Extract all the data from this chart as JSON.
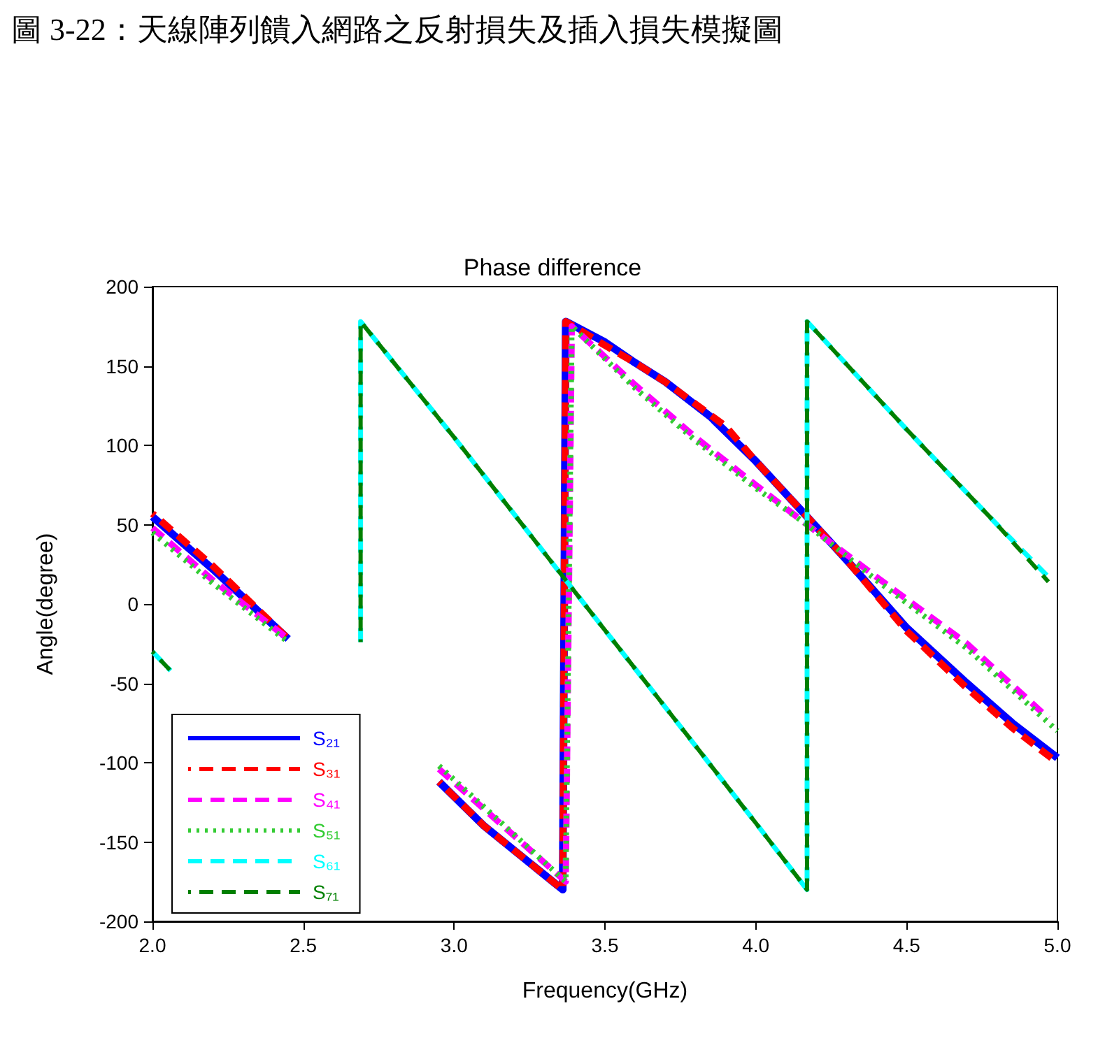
{
  "chart_data": {
    "type": "line",
    "title": "Phase difference",
    "annotations": [
      "圖 3-22：天線陣列饋入網路之反射損失及插入損失模擬圖"
    ],
    "xlabel": "Frequency(GHz)",
    "ylabel": "Angle(degree)",
    "xlim": [
      2,
      5
    ],
    "xticks": [
      {
        "value": 2,
        "label": "2.0"
      },
      {
        "value": 2.5,
        "label": "2.5"
      },
      {
        "value": 3,
        "label": "3.0"
      },
      {
        "value": 3.5,
        "label": "3.5"
      },
      {
        "value": 4,
        "label": "4.0"
      },
      {
        "value": 4.5,
        "label": "4.5"
      },
      {
        "value": 5,
        "label": "5.0"
      }
    ],
    "ylim": [
      -200,
      200
    ],
    "yticks": [
      -200,
      -150,
      -100,
      -50,
      0,
      50,
      100,
      150,
      200
    ],
    "grid": false,
    "legend": "bottom left",
    "marker": "none",
    "series": [
      {
        "name": "S₂₁",
        "color": "#0000ff",
        "line_style": "solid",
        "x": [
          2.0,
          2.2,
          2.45,
          2.7,
          2.95,
          3.1,
          3.36,
          3.37,
          3.5,
          3.6,
          3.7,
          3.85,
          4.0,
          4.17,
          4.3,
          4.5,
          4.7,
          4.85,
          5.0
        ],
        "values": [
          55,
          22,
          -22,
          null,
          -112,
          -140,
          -180,
          178,
          165,
          152,
          140,
          118,
          90,
          55,
          28,
          -15,
          -50,
          -75,
          -97
        ]
      },
      {
        "name": "S₃₁",
        "color": "#ff0000",
        "line_style": "dashed",
        "x": [
          2.0,
          2.2,
          2.45,
          2.7,
          2.95,
          3.1,
          3.36,
          3.37,
          3.5,
          3.6,
          3.7,
          3.9,
          4.0,
          4.17,
          4.3,
          4.5,
          4.7,
          4.85,
          5.0
        ],
        "values": [
          57,
          24,
          -22,
          null,
          -112,
          -140,
          -180,
          178,
          163,
          152,
          140,
          112,
          90,
          55,
          28,
          -17,
          -53,
          -78,
          -100
        ]
      },
      {
        "name": "S₄₁",
        "color": "#ff00ff",
        "line_style": "dashed",
        "x": [
          2.0,
          2.2,
          2.45,
          2.7,
          2.95,
          3.37,
          3.39,
          3.6,
          3.8,
          4.0,
          4.17,
          4.4,
          4.7,
          4.97
        ],
        "values": [
          48,
          15,
          -22,
          null,
          -104,
          -175,
          175,
          138,
          105,
          75,
          50,
          17,
          -25,
          -72
        ]
      },
      {
        "name": "S₅₁",
        "color": "#33cc33",
        "line_style": "dotted",
        "x": [
          2.0,
          2.2,
          2.45,
          2.7,
          2.95,
          3.37,
          3.39,
          3.6,
          3.8,
          4.0,
          4.17,
          4.4,
          4.7,
          5.0
        ],
        "values": [
          45,
          13,
          -24,
          null,
          -102,
          -175,
          175,
          136,
          103,
          73,
          50,
          15,
          -28,
          -80
        ]
      },
      {
        "name": "S₆₁",
        "color": "#00ffff",
        "line_style": "dashed",
        "x": [
          2.0,
          2.06,
          2.3,
          2.69,
          2.69,
          3.0,
          3.37,
          3.7,
          4.0,
          4.17,
          4.17,
          4.5,
          4.8,
          4.97
        ],
        "values": [
          -30,
          -42,
          null,
          -24,
          178,
          105,
          15,
          -65,
          -138,
          -180,
          178,
          110,
          50,
          17
        ]
      },
      {
        "name": "S₇₁",
        "color": "#008000",
        "line_style": "dashed",
        "x": [
          2.0,
          2.06,
          2.3,
          2.69,
          2.69,
          3.0,
          3.37,
          3.7,
          4.0,
          4.17,
          4.17,
          4.5,
          4.8,
          4.97
        ],
        "values": [
          -30,
          -42,
          null,
          -24,
          178,
          105,
          15,
          -65,
          -138,
          -180,
          178,
          110,
          50,
          14
        ]
      }
    ]
  }
}
